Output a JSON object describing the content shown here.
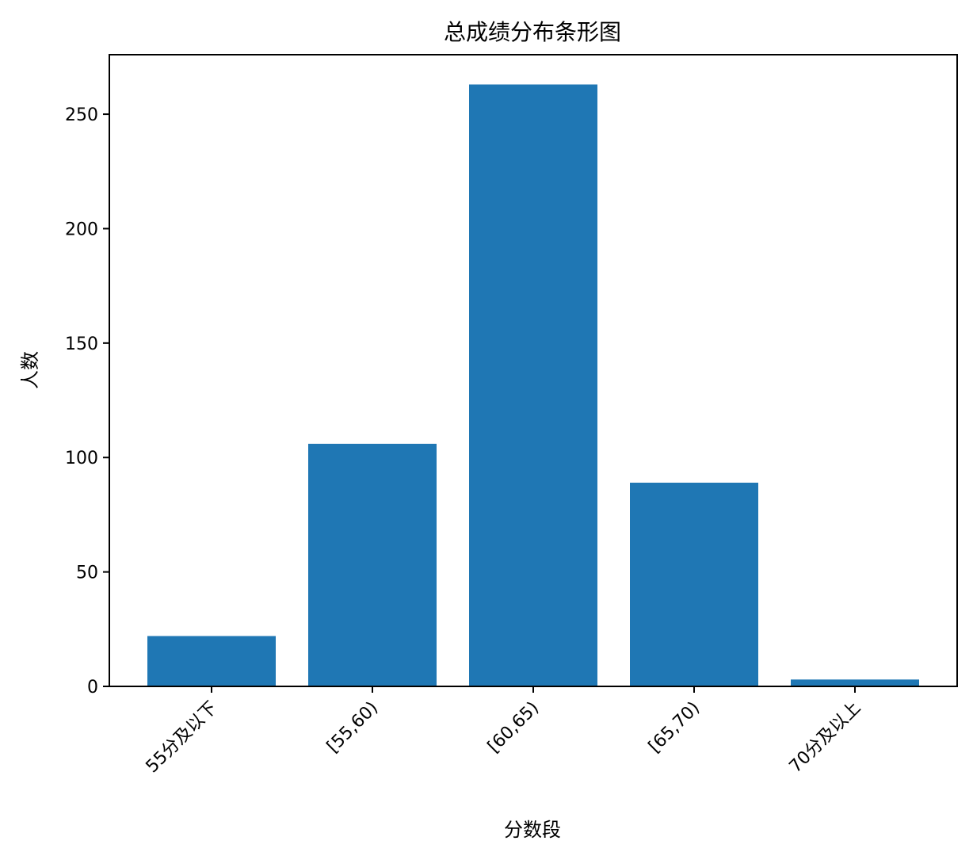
{
  "chart_data": {
    "type": "bar",
    "title": "总成绩分布条形图",
    "xlabel": "分数段",
    "ylabel": "人数",
    "categories": [
      "55分及以下",
      "[55,60)",
      "[60,65)",
      "[65,70)",
      "70分及以上"
    ],
    "values": [
      22,
      106,
      263,
      89,
      3
    ],
    "ylim": [
      0,
      276
    ],
    "yticks": [
      0,
      50,
      100,
      150,
      200,
      250
    ],
    "bar_color": "#1f77b4",
    "grid": false,
    "legend": "none"
  }
}
